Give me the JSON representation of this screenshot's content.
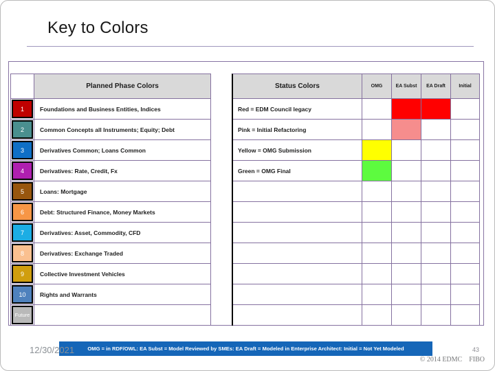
{
  "title": "Key to Colors",
  "planned": {
    "header": "Planned Phase Colors",
    "rows": [
      {
        "num": "1",
        "label": "Foundations and Business Entities, Indices",
        "color": "#c00000"
      },
      {
        "num": "2",
        "label": "Common Concepts all Instruments; Equity; Debt",
        "color": "#4a8f8f"
      },
      {
        "num": "3",
        "label": "Derivatives Common; Loans Common",
        "color": "#0f6fc6"
      },
      {
        "num": "4",
        "label": "Derivatives: Rate, Credit, Fx",
        "color": "#af1fb0"
      },
      {
        "num": "5",
        "label": "Loans: Mortgage",
        "color": "#98560e"
      },
      {
        "num": "6",
        "label": "Debt: Structured Finance, Money Markets",
        "color": "#f79646"
      },
      {
        "num": "7",
        "label": "Derivatives: Asset, Commodity, CFD",
        "color": "#1cade4"
      },
      {
        "num": "8",
        "label": "Derivatives: Exchange Traded",
        "color": "#fac090"
      },
      {
        "num": "9",
        "label": "Collective Investment Vehicles",
        "color": "#d09e0e"
      },
      {
        "num": "10",
        "label": "Rights and Warrants",
        "color": "#4f81bd"
      },
      {
        "num": "Future",
        "label": "",
        "color": "#b9b9b9"
      }
    ]
  },
  "status": {
    "header": "Status Colors",
    "columns": [
      "OMG",
      "EA Subst",
      "EA Draft",
      "Initial"
    ],
    "rows": [
      {
        "label": "Red = EDM Council legacy",
        "cells": [
          null,
          "#ff0000",
          "#ff0000",
          null
        ]
      },
      {
        "label": "Pink = Initial Refactoring",
        "cells": [
          null,
          "#f68d8d",
          null,
          null
        ]
      },
      {
        "label": "Yellow = OMG Submission",
        "cells": [
          "#ffff00",
          null,
          null,
          null
        ]
      },
      {
        "label": "Green = OMG Final",
        "cells": [
          "#5dfb3f",
          null,
          null,
          null
        ]
      },
      {
        "label": "",
        "cells": [
          null,
          null,
          null,
          null
        ]
      },
      {
        "label": "",
        "cells": [
          null,
          null,
          null,
          null
        ]
      },
      {
        "label": "",
        "cells": [
          null,
          null,
          null,
          null
        ]
      },
      {
        "label": "",
        "cells": [
          null,
          null,
          null,
          null
        ]
      },
      {
        "label": "",
        "cells": [
          null,
          null,
          null,
          null
        ]
      },
      {
        "label": "",
        "cells": [
          null,
          null,
          null,
          null
        ]
      },
      {
        "label": "",
        "cells": [
          null,
          null,
          null,
          null
        ]
      }
    ]
  },
  "footer": {
    "date": "12/30/2021",
    "legend": "OMG = in RDF/OWL: EA Subst = Model Reviewed by SMEs: EA Draft = Modeled in Enterprise Architect: Initial = Not Yet Modeled",
    "legend_bg": "#1566b8",
    "page": "43",
    "copyright": "© 2014 EDMC    FIBO"
  },
  "colors": {
    "grid_border": "#84709f",
    "header_bg": "#d9d9d9"
  }
}
